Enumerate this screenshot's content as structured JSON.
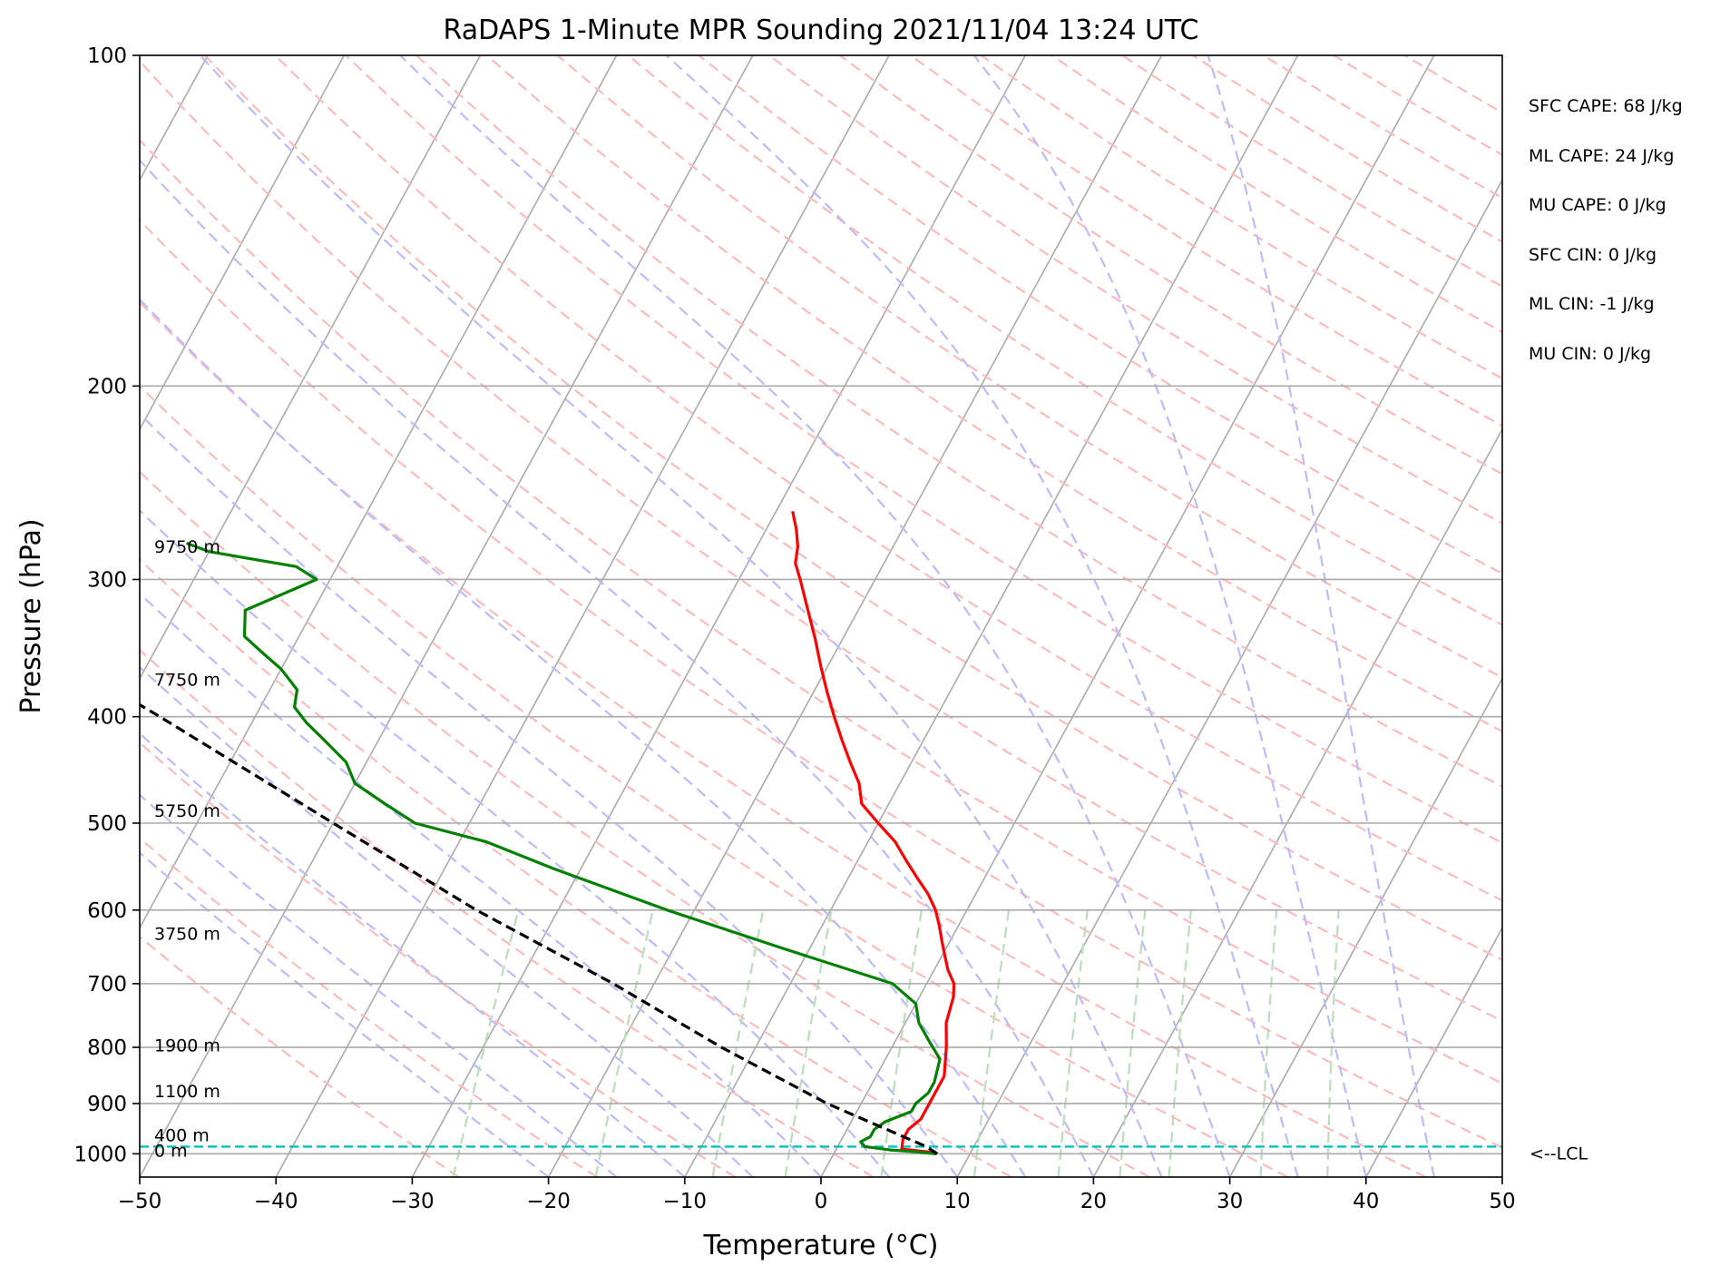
{
  "chart_data": {
    "type": "skew-t",
    "title": "RaDAPS 1-Minute MPR Sounding 2021/11/04 13:24 UTC",
    "xlabel": "Temperature (°C)",
    "ylabel": "Pressure (hPa)",
    "xlim": [
      -50,
      50
    ],
    "ylim": [
      1050,
      100
    ],
    "y_scale": "log",
    "xticks": [
      "−50",
      "−40",
      "−30",
      "−20",
      "−10",
      "0",
      "10",
      "20",
      "30",
      "40",
      "50"
    ],
    "yticks": [
      "1000",
      "900",
      "800",
      "700",
      "600",
      "500",
      "400",
      "300",
      "200",
      "100"
    ],
    "grid": true,
    "background_lines": {
      "isotherms_color": "#aaaaaa",
      "dry_adiabats_color": "#ffbbbb",
      "moist_adiabats_color": "#bbbbff",
      "mixing_ratio_color": "#bbddbb"
    },
    "series": [
      {
        "color": "#ff0000",
        "points": [
          [
            1000,
            7.5
          ],
          [
            996,
            6.8
          ],
          [
            990,
            4.8
          ],
          [
            970,
            4.5
          ],
          [
            950,
            4.5
          ],
          [
            930,
            5
          ],
          [
            900,
            5
          ],
          [
            850,
            5
          ],
          [
            800,
            4
          ],
          [
            760,
            3
          ],
          [
            720,
            2.5
          ],
          [
            700,
            2
          ],
          [
            680,
            1
          ],
          [
            660,
            0.2
          ],
          [
            640,
            -0.6
          ],
          [
            620,
            -1.4
          ],
          [
            600,
            -2.3
          ],
          [
            580,
            -3.5
          ],
          [
            560,
            -5
          ],
          [
            540,
            -6.5
          ],
          [
            520,
            -8
          ],
          [
            500,
            -10
          ],
          [
            480,
            -12
          ],
          [
            460,
            -13
          ],
          [
            440,
            -14.5
          ],
          [
            420,
            -16
          ],
          [
            400,
            -17.5
          ],
          [
            380,
            -19
          ],
          [
            360,
            -20.5
          ],
          [
            340,
            -22
          ],
          [
            320,
            -23.7
          ],
          [
            300,
            -25.5
          ],
          [
            290,
            -26.5
          ],
          [
            280,
            -27
          ],
          [
            270,
            -27.8
          ],
          [
            260,
            -28.8
          ]
        ]
      },
      {
        "color": "#008000",
        "points": [
          [
            1000,
            7.5
          ],
          [
            996,
            6
          ],
          [
            992,
            4
          ],
          [
            985,
            2
          ],
          [
            975,
            1.5
          ],
          [
            965,
            2
          ],
          [
            950,
            2
          ],
          [
            935,
            2.5
          ],
          [
            915,
            4
          ],
          [
            900,
            4
          ],
          [
            880,
            4.5
          ],
          [
            860,
            4.5
          ],
          [
            820,
            4
          ],
          [
            790,
            2.5
          ],
          [
            760,
            1
          ],
          [
            730,
            0
          ],
          [
            700,
            -2.5
          ],
          [
            650,
            -12
          ],
          [
            600,
            -22
          ],
          [
            550,
            -32
          ],
          [
            520,
            -38
          ],
          [
            500,
            -44
          ],
          [
            480,
            -47
          ],
          [
            460,
            -50
          ],
          [
            440,
            -51.5
          ],
          [
            420,
            -54
          ],
          [
            405,
            -56
          ],
          [
            392,
            -57.5
          ],
          [
            378,
            -58
          ],
          [
            362,
            -60
          ],
          [
            350,
            -62
          ],
          [
            338,
            -64
          ],
          [
            320,
            -65
          ],
          [
            300,
            -61
          ],
          [
            292,
            -63
          ],
          [
            283,
            -70
          ],
          [
            278,
            -72
          ]
        ]
      },
      {
        "color": "#000000",
        "points": [
          [
            1000,
            7.6
          ],
          [
            985,
            6.5
          ],
          [
            900,
            -2.5
          ],
          [
            800,
            -12.5
          ],
          [
            700,
            -23
          ],
          [
            600,
            -36
          ],
          [
            500,
            -50
          ],
          [
            400,
            -67
          ],
          [
            300,
            -89.5
          ],
          [
            263,
            -99
          ]
        ]
      }
    ],
    "height_labels": [
      {
        "text": "9750 m",
        "p": 280
      },
      {
        "text": "7750 m",
        "p": 370
      },
      {
        "text": "5750 m",
        "p": 487
      },
      {
        "text": "3750 m",
        "p": 630
      },
      {
        "text": "1900 m",
        "p": 796
      },
      {
        "text": "1100 m",
        "p": 876
      },
      {
        "text": "400 m",
        "p": 961
      },
      {
        "text": "0 m",
        "p": 993
      }
    ],
    "lcl": {
      "p": 985,
      "label": "<--LCL",
      "color": "#00c0c0"
    },
    "annotations": [
      "SFC CAPE: 68 J/kg",
      "ML CAPE: 24 J/kg",
      "MU CAPE: 0 J/kg",
      "SFC CIN: 0 J/kg",
      "ML CIN: -1 J/kg",
      "MU CIN: 0 J/kg"
    ]
  }
}
